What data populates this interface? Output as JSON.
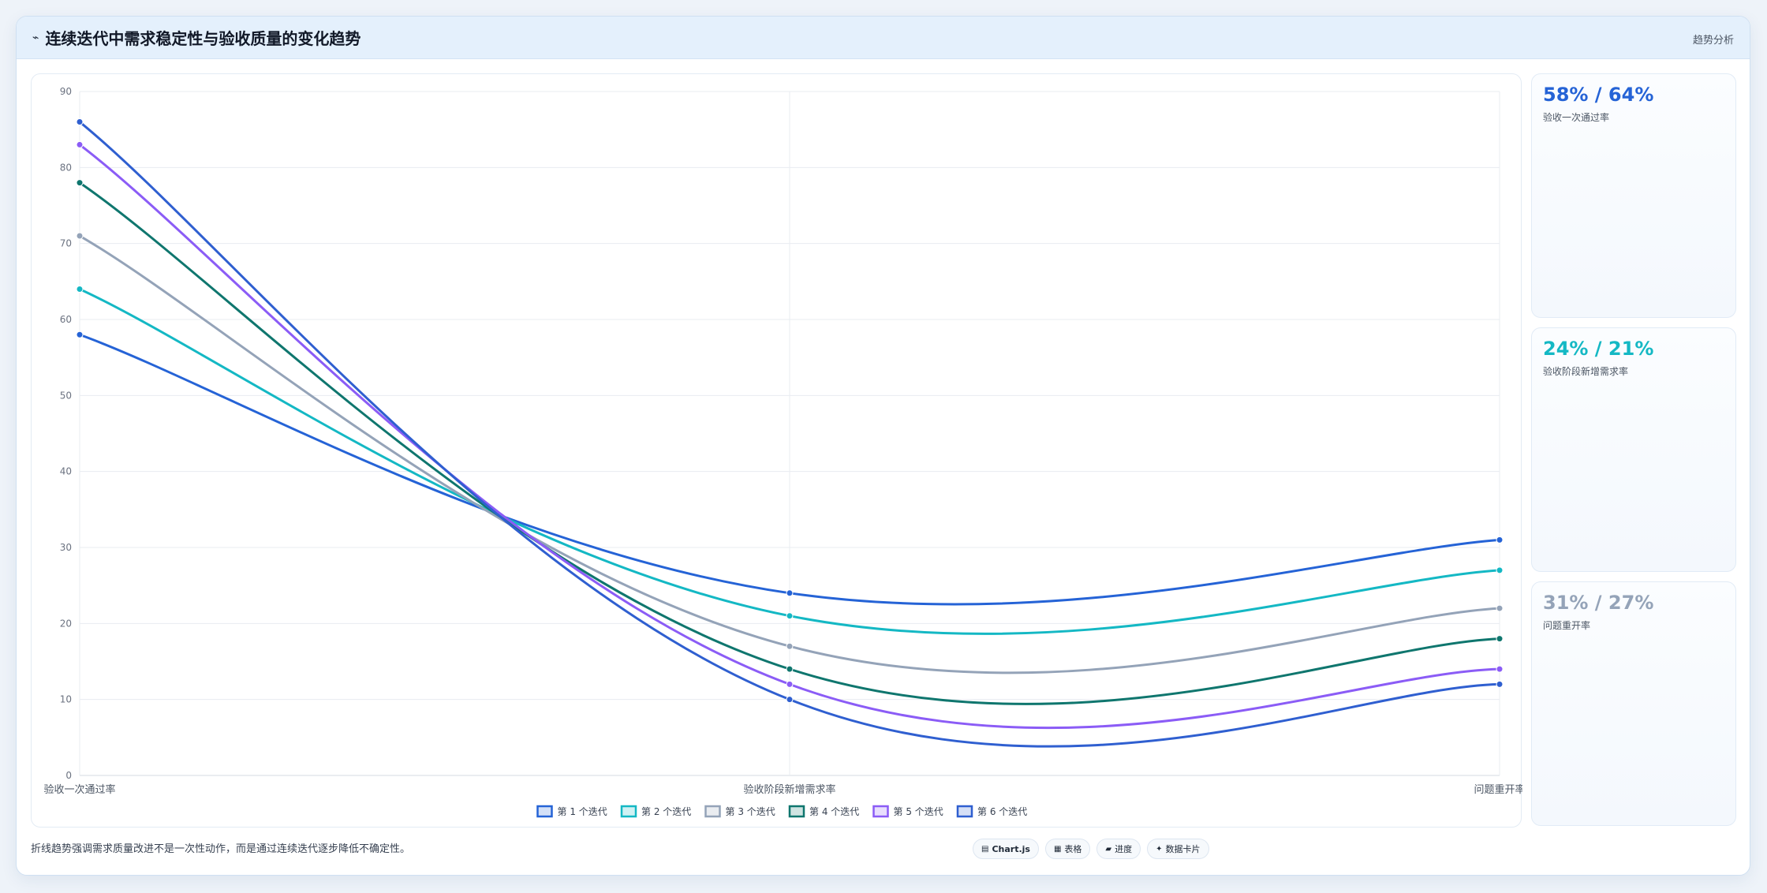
{
  "header": {
    "title": "连续迭代中需求稳定性与验收质量的变化趋势",
    "tag": "趋势分析",
    "icon": "trend-line-icon"
  },
  "stats": [
    {
      "value": "58% / 64%",
      "label": "验收一次通过率",
      "color": "#2563d6"
    },
    {
      "value": "24% / 21%",
      "label": "验收阶段新增需求率",
      "color": "#14b8c4"
    },
    {
      "value": "31% / 27%",
      "label": "问题重开率",
      "color": "#94a3b8"
    }
  ],
  "footer": {
    "note": "折线趋势强调需求质量改进不是一次性动作，而是通过连续迭代逐步降低不确定性。",
    "chips": [
      {
        "icon": "chart-icon",
        "label": "Chart.js"
      },
      {
        "icon": "table-icon",
        "label": "表格"
      },
      {
        "icon": "folder-icon",
        "label": "进度"
      },
      {
        "icon": "spark-icon",
        "label": "数据卡片"
      }
    ]
  },
  "chart_data": {
    "type": "line",
    "categories": [
      "验收一次通过率",
      "验收阶段新增需求率",
      "问题重开率"
    ],
    "ylim": [
      0,
      90
    ],
    "yticks": [
      0,
      10,
      20,
      30,
      40,
      50,
      60,
      70,
      80,
      90
    ],
    "grid": true,
    "legend_position": "bottom",
    "series": [
      {
        "name": "第 1 个迭代",
        "values": [
          58,
          24,
          31
        ],
        "color": "#2563d6"
      },
      {
        "name": "第 2 个迭代",
        "values": [
          64,
          21,
          27
        ],
        "color": "#14b8c4"
      },
      {
        "name": "第 3 个迭代",
        "values": [
          71,
          17,
          22
        ],
        "color": "#94a3b8"
      },
      {
        "name": "第 4 个迭代",
        "values": [
          78,
          14,
          18
        ],
        "color": "#0f766e"
      },
      {
        "name": "第 5 个迭代",
        "values": [
          83,
          12,
          14
        ],
        "color": "#8b5cf6"
      },
      {
        "name": "第 6 个迭代",
        "values": [
          86,
          10,
          12
        ],
        "color": "#2f5fd0"
      }
    ]
  }
}
